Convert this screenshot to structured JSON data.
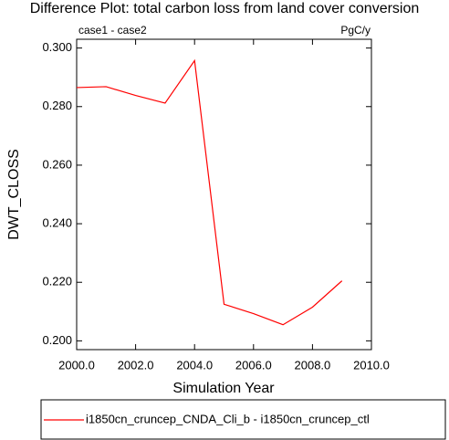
{
  "chart_data": {
    "type": "line",
    "title": "Difference Plot: total carbon loss from land cover conversion",
    "left_annotation": "case1 - case2",
    "right_annotation": "PgC/y",
    "xlabel": "Simulation Year",
    "ylabel": "DWT_CLOSS",
    "x": [
      2000,
      2001,
      2002,
      2003,
      2004,
      2005,
      2006,
      2007,
      2008,
      2009
    ],
    "series": [
      {
        "name": "i1850cn_cruncep_CNDA_Cli_b - i1850cn_cruncep_ctl",
        "color": "#ff0000",
        "values": [
          0.2865,
          0.2868,
          0.2838,
          0.2812,
          0.2957,
          0.2125,
          0.2093,
          0.2055,
          0.2115,
          0.2205
        ]
      }
    ],
    "xlim": [
      2000,
      2010
    ],
    "ylim": [
      0.197,
      0.303
    ],
    "xticks": [
      {
        "value": 2000,
        "label": "2000.0"
      },
      {
        "value": 2002,
        "label": "2002.0"
      },
      {
        "value": 2004,
        "label": "2004.0"
      },
      {
        "value": 2006,
        "label": "2006.0"
      },
      {
        "value": 2008,
        "label": "2008.0"
      },
      {
        "value": 2010,
        "label": "2010.0"
      }
    ],
    "yticks": [
      {
        "value": 0.2,
        "label": "0.200"
      },
      {
        "value": 0.22,
        "label": "0.220"
      },
      {
        "value": 0.24,
        "label": "0.240"
      },
      {
        "value": 0.26,
        "label": "0.260"
      },
      {
        "value": 0.28,
        "label": "0.280"
      },
      {
        "value": 0.3,
        "label": "0.300"
      }
    ],
    "legend": "bottom"
  }
}
